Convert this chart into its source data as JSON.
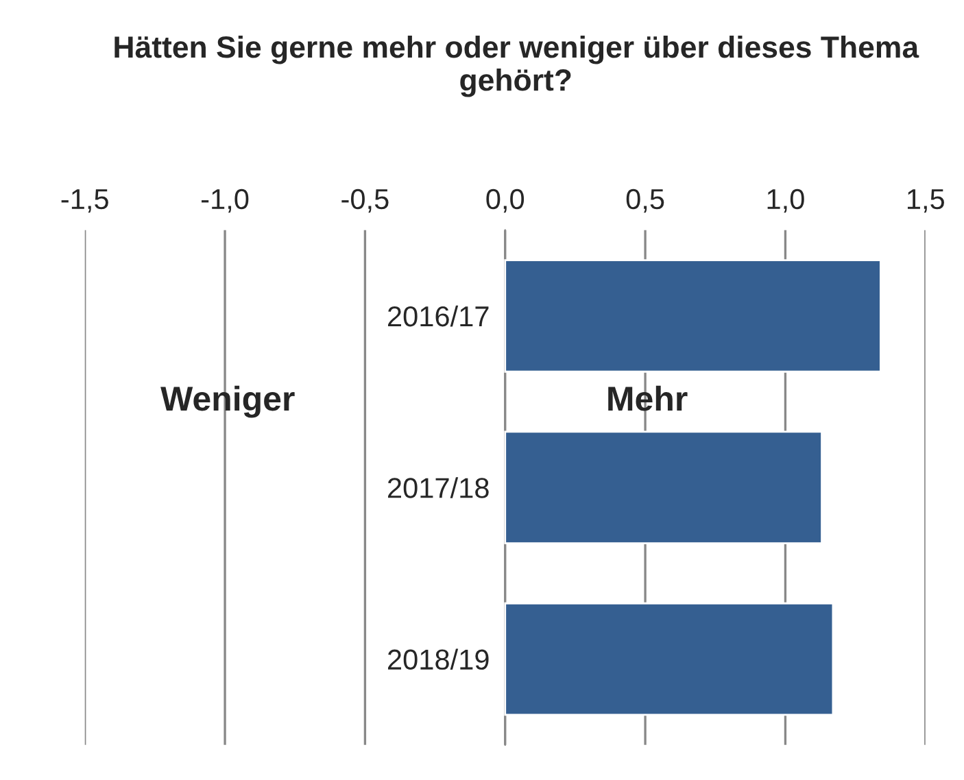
{
  "chart_data": {
    "type": "bar",
    "orientation": "horizontal",
    "title": "Hätten Sie gerne mehr oder weniger über dieses Thema gehört?",
    "categories": [
      "2016/17",
      "2017/18",
      "2018/19"
    ],
    "values": [
      1.34,
      1.13,
      1.17
    ],
    "color": "#355f91",
    "xlim": [
      -1.5,
      1.5
    ],
    "xticks": [
      {
        "value": -1.5,
        "label": "-1,5"
      },
      {
        "value": -1.0,
        "label": "-1,0"
      },
      {
        "value": -0.5,
        "label": "-0,5"
      },
      {
        "value": 0.0,
        "label": "0,0"
      },
      {
        "value": 0.5,
        "label": "0,5"
      },
      {
        "value": 1.0,
        "label": "1,0"
      },
      {
        "value": 1.5,
        "label": "1,5"
      }
    ],
    "grid": "x",
    "annotations": [
      "Weniger",
      "Mehr"
    ]
  }
}
